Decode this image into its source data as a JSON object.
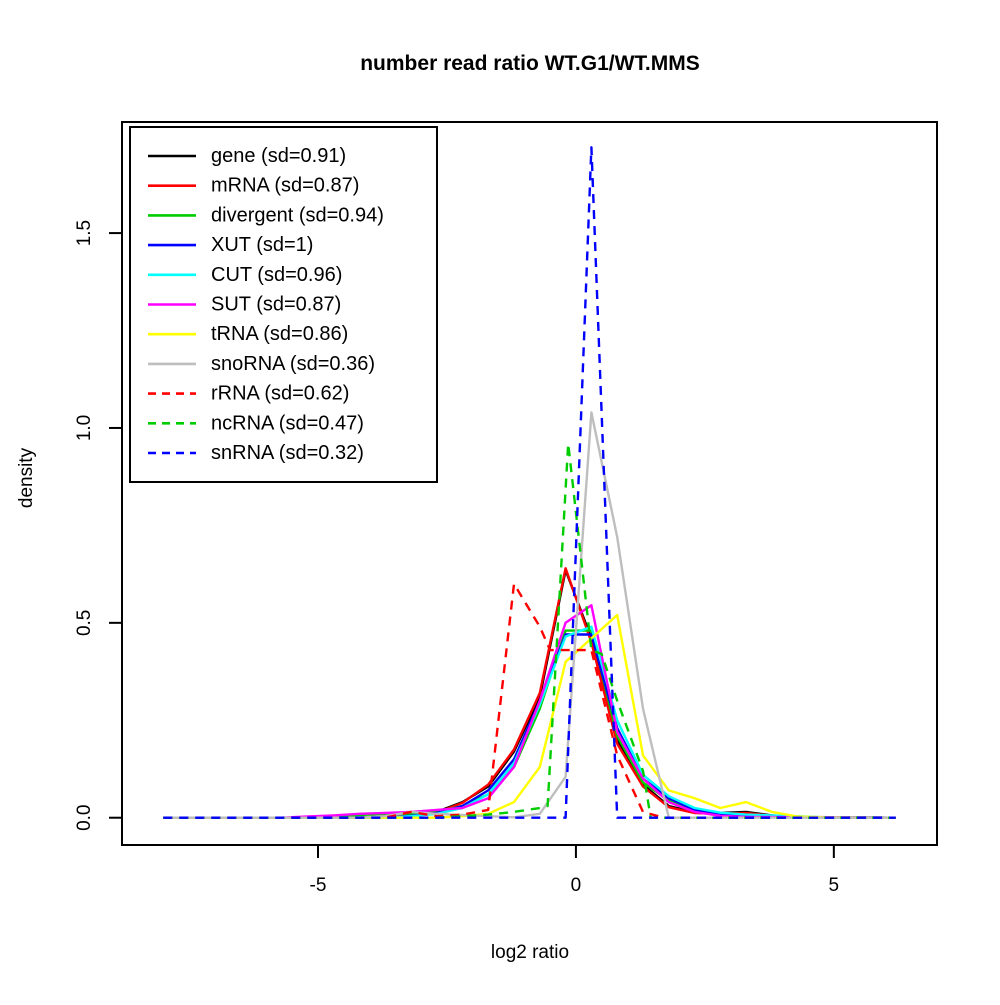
{
  "chart_data": {
    "type": "line",
    "title": "number read ratio WT.G1/WT.MMS",
    "xlabel": "log2 ratio",
    "ylabel": "density",
    "xlim": [
      -8.8,
      7.0
    ],
    "ylim": [
      -0.07,
      1.785
    ],
    "grid": false,
    "legend_position": "top-left",
    "x_ticks": [
      {
        "v": -5,
        "label": "-5"
      },
      {
        "v": 0,
        "label": "0"
      },
      {
        "v": 5,
        "label": "5"
      }
    ],
    "y_ticks": [
      {
        "v": 0.0,
        "label": "0.0"
      },
      {
        "v": 0.5,
        "label": "0.5"
      },
      {
        "v": 1.0,
        "label": "1.0"
      },
      {
        "v": 1.5,
        "label": "1.5"
      }
    ],
    "series": [
      {
        "name": "gene",
        "label": "gene (sd=0.91)",
        "color": "#000000",
        "dashed": false,
        "points": [
          [
            -8.0,
            0
          ],
          [
            -4.2,
            0
          ],
          [
            -3.7,
            0.004
          ],
          [
            -3.2,
            0.007
          ],
          [
            -2.7,
            0.015
          ],
          [
            -2.2,
            0.04
          ],
          [
            -1.7,
            0.08
          ],
          [
            -1.2,
            0.17
          ],
          [
            -0.7,
            0.31
          ],
          [
            -0.2,
            0.635
          ],
          [
            0.3,
            0.46
          ],
          [
            0.8,
            0.2
          ],
          [
            1.3,
            0.085
          ],
          [
            1.8,
            0.03
          ],
          [
            2.3,
            0.014
          ],
          [
            2.8,
            0.012
          ],
          [
            3.3,
            0.015
          ],
          [
            3.8,
            0.006
          ],
          [
            4.3,
            0.002
          ],
          [
            4.8,
            0.001
          ],
          [
            6.2,
            0
          ]
        ]
      },
      {
        "name": "mRNA",
        "label": "mRNA (sd=0.87)",
        "color": "#FF0000",
        "dashed": false,
        "points": [
          [
            -8.0,
            0
          ],
          [
            -4.2,
            0
          ],
          [
            -3.7,
            0.003
          ],
          [
            -3.2,
            0.006
          ],
          [
            -2.7,
            0.013
          ],
          [
            -2.2,
            0.038
          ],
          [
            -1.7,
            0.085
          ],
          [
            -1.2,
            0.175
          ],
          [
            -0.7,
            0.32
          ],
          [
            -0.2,
            0.64
          ],
          [
            0.3,
            0.45
          ],
          [
            0.8,
            0.19
          ],
          [
            1.3,
            0.08
          ],
          [
            1.8,
            0.027
          ],
          [
            2.3,
            0.012
          ],
          [
            2.8,
            0.01
          ],
          [
            3.3,
            0.012
          ],
          [
            3.8,
            0.005
          ],
          [
            4.3,
            0.002
          ],
          [
            6.2,
            0
          ]
        ]
      },
      {
        "name": "divergent",
        "label": "divergent (sd=0.94)",
        "color": "#00CD00",
        "dashed": false,
        "points": [
          [
            -8.0,
            0
          ],
          [
            -5.2,
            0
          ],
          [
            -4.7,
            0.004
          ],
          [
            -4.2,
            0.007
          ],
          [
            -3.7,
            0.01
          ],
          [
            -3.2,
            0.01
          ],
          [
            -2.7,
            0.015
          ],
          [
            -2.2,
            0.03
          ],
          [
            -1.7,
            0.06
          ],
          [
            -1.2,
            0.13
          ],
          [
            -0.7,
            0.28
          ],
          [
            -0.2,
            0.48
          ],
          [
            0.3,
            0.48
          ],
          [
            0.8,
            0.21
          ],
          [
            1.3,
            0.09
          ],
          [
            1.8,
            0.045
          ],
          [
            2.3,
            0.02
          ],
          [
            2.8,
            0.008
          ],
          [
            3.3,
            0.003
          ],
          [
            3.8,
            0.001
          ],
          [
            6.2,
            0
          ]
        ]
      },
      {
        "name": "XUT",
        "label": "XUT (sd=1)",
        "color": "#0000FF",
        "dashed": false,
        "points": [
          [
            -8.0,
            0
          ],
          [
            -3.7,
            0
          ],
          [
            -3.2,
            0.005
          ],
          [
            -2.7,
            0.012
          ],
          [
            -2.2,
            0.03
          ],
          [
            -1.7,
            0.07
          ],
          [
            -1.2,
            0.15
          ],
          [
            -0.7,
            0.3
          ],
          [
            -0.2,
            0.47
          ],
          [
            0.3,
            0.47
          ],
          [
            0.8,
            0.23
          ],
          [
            1.3,
            0.1
          ],
          [
            1.8,
            0.05
          ],
          [
            2.3,
            0.02
          ],
          [
            2.8,
            0.01
          ],
          [
            3.3,
            0.005
          ],
          [
            3.8,
            0.002
          ],
          [
            6.2,
            0
          ]
        ]
      },
      {
        "name": "CUT",
        "label": "CUT (sd=0.96)",
        "color": "#00FFFF",
        "dashed": false,
        "points": [
          [
            -8.0,
            0
          ],
          [
            -3.7,
            0
          ],
          [
            -3.2,
            0.004
          ],
          [
            -2.7,
            0.01
          ],
          [
            -2.2,
            0.025
          ],
          [
            -1.7,
            0.06
          ],
          [
            -1.2,
            0.14
          ],
          [
            -0.7,
            0.29
          ],
          [
            -0.2,
            0.465
          ],
          [
            0.3,
            0.49
          ],
          [
            0.8,
            0.25
          ],
          [
            1.3,
            0.11
          ],
          [
            1.8,
            0.055
          ],
          [
            2.3,
            0.025
          ],
          [
            2.8,
            0.013
          ],
          [
            3.3,
            0.008
          ],
          [
            3.8,
            0.006
          ],
          [
            4.3,
            0.004
          ],
          [
            4.8,
            0.001
          ],
          [
            6.2,
            0
          ]
        ]
      },
      {
        "name": "SUT",
        "label": "SUT (sd=0.87)",
        "color": "#FF00FF",
        "dashed": false,
        "points": [
          [
            -8.0,
            0
          ],
          [
            -5.7,
            0
          ],
          [
            -5.2,
            0.003
          ],
          [
            -4.7,
            0.006
          ],
          [
            -4.2,
            0.01
          ],
          [
            -3.7,
            0.012
          ],
          [
            -3.2,
            0.015
          ],
          [
            -2.7,
            0.02
          ],
          [
            -2.2,
            0.025
          ],
          [
            -1.7,
            0.05
          ],
          [
            -1.2,
            0.13
          ],
          [
            -0.7,
            0.3
          ],
          [
            -0.2,
            0.5
          ],
          [
            0.3,
            0.545
          ],
          [
            0.8,
            0.22
          ],
          [
            1.3,
            0.1
          ],
          [
            1.8,
            0.04
          ],
          [
            2.3,
            0.015
          ],
          [
            2.8,
            0.005
          ],
          [
            3.3,
            0.002
          ],
          [
            6.2,
            0
          ]
        ]
      },
      {
        "name": "tRNA",
        "label": "tRNA (sd=0.86)",
        "color": "#FFFF00",
        "dashed": false,
        "points": [
          [
            -8.0,
            0
          ],
          [
            -2.7,
            0
          ],
          [
            -2.2,
            0.004
          ],
          [
            -1.7,
            0.01
          ],
          [
            -1.2,
            0.04
          ],
          [
            -0.7,
            0.13
          ],
          [
            -0.2,
            0.4
          ],
          [
            0.3,
            0.46
          ],
          [
            0.8,
            0.52
          ],
          [
            1.3,
            0.16
          ],
          [
            1.8,
            0.07
          ],
          [
            2.3,
            0.05
          ],
          [
            2.8,
            0.025
          ],
          [
            3.3,
            0.04
          ],
          [
            3.8,
            0.015
          ],
          [
            4.3,
            0.003
          ],
          [
            4.8,
            0.001
          ],
          [
            6.2,
            0
          ]
        ]
      },
      {
        "name": "snoRNA",
        "label": "snoRNA (sd=0.36)",
        "color": "#BEBEBE",
        "dashed": false,
        "points": [
          [
            -8.0,
            0
          ],
          [
            -4.2,
            0
          ],
          [
            -3.7,
            0.004
          ],
          [
            -3.2,
            0.015
          ],
          [
            -2.7,
            0.01
          ],
          [
            -2.2,
            0.007
          ],
          [
            -1.7,
            0.004
          ],
          [
            -1.2,
            0.001
          ],
          [
            -0.7,
            0.01
          ],
          [
            -0.2,
            0.105
          ],
          [
            0.3,
            1.04
          ],
          [
            0.8,
            0.72
          ],
          [
            1.3,
            0.28
          ],
          [
            1.8,
            0
          ],
          [
            6.2,
            0
          ]
        ]
      },
      {
        "name": "rRNA",
        "label": "rRNA (sd=0.62)",
        "color": "#FF0000",
        "dashed": true,
        "points": [
          [
            -8.0,
            0
          ],
          [
            -3.7,
            0
          ],
          [
            -3.2,
            0.015
          ],
          [
            -2.7,
            0.004
          ],
          [
            -2.2,
            0.008
          ],
          [
            -1.7,
            0.02
          ],
          [
            -1.2,
            0.6
          ],
          [
            -0.7,
            0.49
          ],
          [
            -0.5,
            0.43
          ],
          [
            0.3,
            0.43
          ],
          [
            0.8,
            0.16
          ],
          [
            1.3,
            0.015
          ],
          [
            1.7,
            0
          ],
          [
            6.2,
            0
          ]
        ]
      },
      {
        "name": "ncRNA",
        "label": "ncRNA (sd=0.47)",
        "color": "#00CD00",
        "dashed": true,
        "points": [
          [
            -8.0,
            0
          ],
          [
            -2.7,
            0
          ],
          [
            -2.2,
            0.004
          ],
          [
            -1.7,
            0.008
          ],
          [
            -1.2,
            0.015
          ],
          [
            -0.7,
            0.025
          ],
          [
            -0.55,
            0.03
          ],
          [
            -0.15,
            0.96
          ],
          [
            0.3,
            0.43
          ],
          [
            0.5,
            0.42
          ],
          [
            0.8,
            0.3
          ],
          [
            1.3,
            0.12
          ],
          [
            1.45,
            0
          ],
          [
            6.2,
            0
          ]
        ]
      },
      {
        "name": "snRNA",
        "label": "snRNA (sd=0.32)",
        "color": "#0000FF",
        "dashed": true,
        "points": [
          [
            -8.0,
            0
          ],
          [
            -0.2,
            0
          ],
          [
            0.3,
            1.72
          ],
          [
            0.8,
            0
          ],
          [
            6.2,
            0
          ]
        ]
      }
    ]
  }
}
